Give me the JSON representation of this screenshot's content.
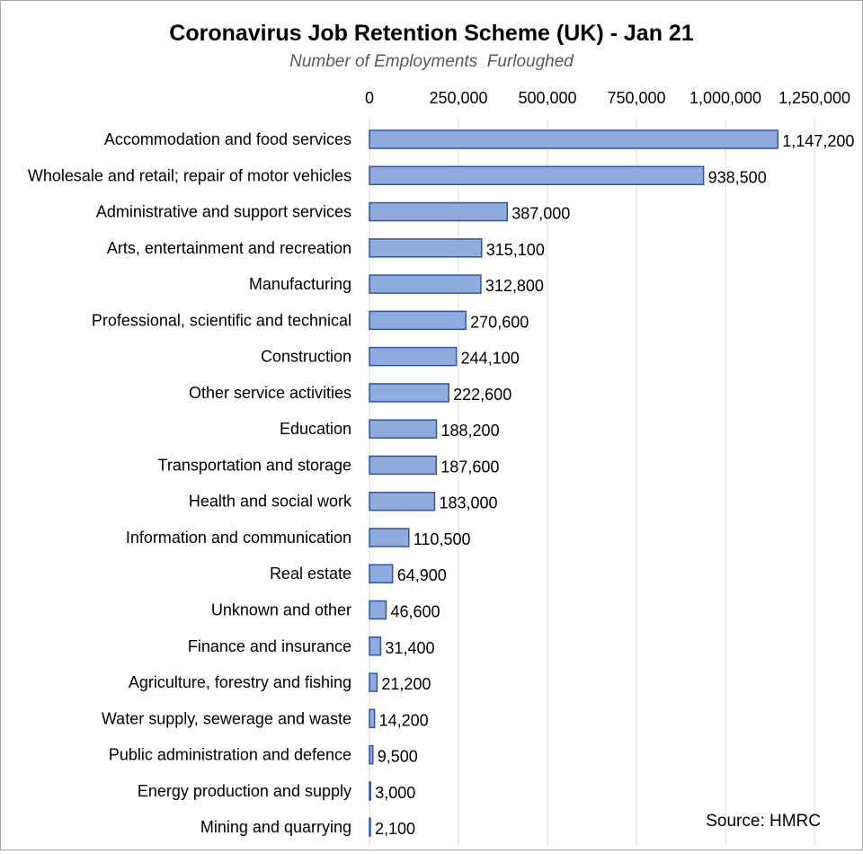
{
  "chart_data": {
    "type": "bar",
    "orientation": "horizontal",
    "title": "Coronavirus Job Retention Scheme (UK) - Jan 21",
    "subtitle": "Number of Employments  Furloughed",
    "source": "Source: HMRC",
    "xlim": [
      0,
      1250000
    ],
    "x_ticks": [
      0,
      250000,
      500000,
      750000,
      1000000,
      1250000
    ],
    "x_tick_labels": [
      "0",
      "250,000",
      "500,000",
      "750,000",
      "1,000,000",
      "1,250,000"
    ],
    "x_axis_position": "top",
    "grid": "vertical",
    "legend": "none",
    "bar_color": "#8faadc",
    "bar_edge_color": "#2f55a4",
    "categories": [
      "Accommodation and food services",
      "Wholesale and retail; repair of motor vehicles",
      "Administrative and support services",
      "Arts, entertainment and recreation",
      "Manufacturing",
      "Professional, scientific and technical",
      "Construction",
      "Other service activities",
      "Education",
      "Transportation and storage",
      "Health and social work",
      "Information and communication",
      "Real estate",
      "Unknown and other",
      "Finance and insurance",
      "Agriculture, forestry and fishing",
      "Water supply, sewerage and waste",
      "Public administration and defence",
      "Energy production and supply",
      "Mining and quarrying"
    ],
    "values": [
      1147200,
      938500,
      387000,
      315100,
      312800,
      270600,
      244100,
      222600,
      188200,
      187600,
      183000,
      110500,
      64900,
      46600,
      31400,
      21200,
      14200,
      9500,
      3000,
      2100
    ],
    "value_labels": [
      "1,147,200",
      "938,500",
      "387,000",
      "315,100",
      "312,800",
      "270,600",
      "244,100",
      "222,600",
      "188,200",
      "187,600",
      "183,000",
      "110,500",
      "64,900",
      "46,600",
      "31,400",
      "21,200",
      "14,200",
      "9,500",
      "3,000",
      "2,100"
    ]
  }
}
